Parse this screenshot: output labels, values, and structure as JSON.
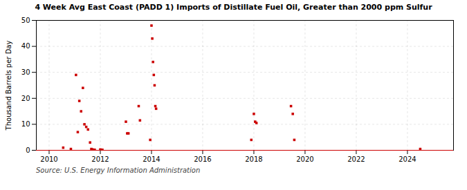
{
  "chart_data": {
    "type": "scatter",
    "title": "4 Week Avg East Coast (PADD 1) Imports of Distillate Fuel Oil, Greater than 2000 ppm Sulfur",
    "ylabel": "Thousand Barrels per Day",
    "source": "Source: U.S. Energy Information Administration",
    "color": "#cc0000",
    "marker": "square",
    "grid": true,
    "xlim": [
      2009.5,
      2025.8
    ],
    "ylim": [
      0,
      50
    ],
    "xticks": [
      2010,
      2012,
      2014,
      2016,
      2018,
      2020,
      2022,
      2024
    ],
    "yticks": [
      0,
      10,
      20,
      30,
      40,
      50
    ],
    "x": [
      2010.55,
      2010.85,
      2011.05,
      2011.12,
      2011.18,
      2011.25,
      2011.32,
      2011.38,
      2011.45,
      2011.52,
      2011.6,
      2011.65,
      2011.7,
      2011.78,
      2012.0,
      2012.05,
      2012.08,
      2013.0,
      2013.05,
      2013.1,
      2013.5,
      2013.55,
      2013.95,
      2014.0,
      2014.03,
      2014.06,
      2014.09,
      2014.12,
      2014.15,
      2014.18,
      2017.9,
      2018.0,
      2018.05,
      2018.1,
      2019.45,
      2019.52,
      2019.58,
      2024.5
    ],
    "values": [
      1.0,
      0.5,
      29.0,
      7.0,
      19.0,
      15.0,
      24.0,
      10.0,
      9.0,
      8.0,
      3.0,
      0.5,
      0.3,
      0.2,
      0.3,
      0.2,
      0.2,
      11.0,
      6.5,
      6.5,
      17.0,
      11.5,
      4.0,
      48.0,
      43.0,
      34.0,
      29.0,
      25.0,
      17.0,
      16.0,
      4.0,
      14.0,
      11.0,
      10.5,
      17.0,
      14.0,
      4.0,
      0.5
    ]
  }
}
